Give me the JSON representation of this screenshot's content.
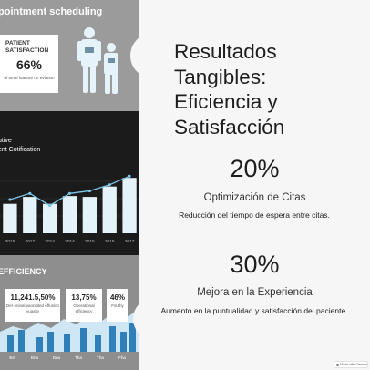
{
  "left_image": {
    "appointment_section": {
      "title": "pointment scheduling",
      "satisfaction_card": {
        "label": "PATIENT SATISFACTION",
        "value": "66%",
        "caption": "of tonal fuatiure on evlation"
      }
    },
    "chart_section": {
      "title": "utive\nent Cotification",
      "chart_data": {
        "type": "bar",
        "categories": [
          "2015",
          "2017",
          "2014",
          "2014",
          "2015",
          "2015",
          "2017"
        ],
        "values": [
          34,
          42,
          34,
          43,
          42,
          54,
          64
        ],
        "line_values": [
          39,
          46,
          32,
          46,
          49,
          56,
          66
        ],
        "ylim": [
          0,
          80
        ]
      }
    },
    "efficiency_section": {
      "title": "EFFICIENCY",
      "cards": [
        {
          "value": "11,241.5,50%",
          "caption": "Der eninal vaonitited effuslon vuaslty"
        },
        {
          "value": "13,75%",
          "caption": "Operational efficiency"
        },
        {
          "value": "46%",
          "caption": "Fsuthy"
        }
      ],
      "x_labels": [
        "Ber",
        "Bna",
        "Bna",
        "Tha",
        "Tha",
        "Fha"
      ]
    }
  },
  "content": {
    "title": "Resultados Tangibles: Eficiencia y Satisfacción",
    "stats": [
      {
        "value": "20%",
        "heading": "Optimización de Citas",
        "description": "Reducción del tiempo de espera entre citas."
      },
      {
        "value": "30%",
        "heading": "Mejora en la Experiencia",
        "description": "Aumento en la puntualidad y satisfacción del paciente."
      }
    ]
  },
  "badge": {
    "label": "Made with Gamma"
  }
}
